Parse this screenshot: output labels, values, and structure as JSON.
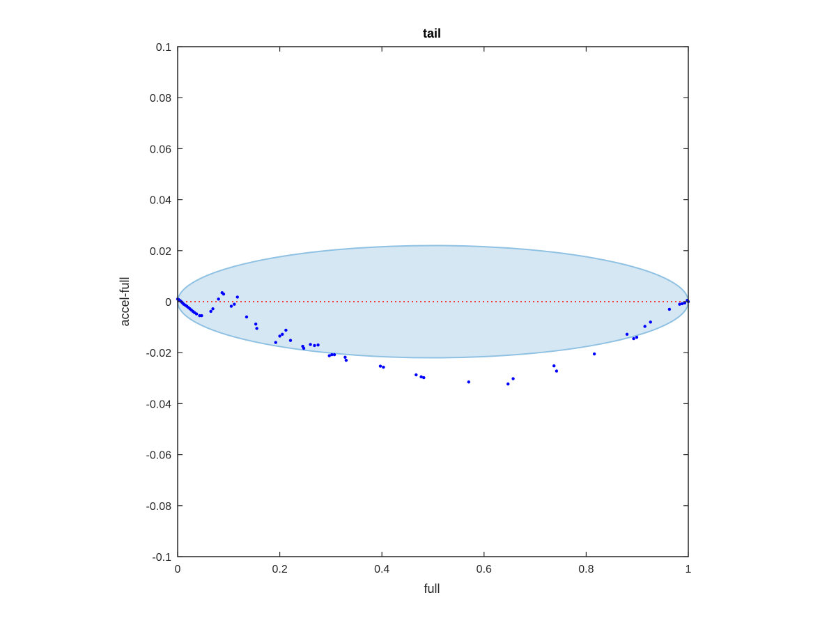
{
  "chart_data": {
    "type": "scatter",
    "title": "tail",
    "xlabel": "full",
    "ylabel": "accel-full",
    "xlim": [
      0,
      1
    ],
    "ylim": [
      -0.1,
      0.1
    ],
    "x_ticks": [
      0,
      0.2,
      0.4,
      0.6,
      0.8,
      1
    ],
    "x_tick_labels": [
      "0",
      "0.2",
      "0.4",
      "0.6",
      "0.8",
      "1"
    ],
    "y_ticks": [
      0.1,
      0.08,
      0.06,
      0.04,
      0.02,
      0,
      -0.02,
      -0.04,
      -0.06,
      -0.08,
      -0.1
    ],
    "y_tick_labels": [
      "0.1",
      "0.08",
      "0.06",
      "0.04",
      "0.02",
      "0",
      "-0.02",
      "-0.04",
      "-0.06",
      "-0.08",
      "-0.1"
    ],
    "grid": false,
    "reference_line": {
      "y": 0,
      "style": "dotted",
      "color": "#ff0000"
    },
    "ellipse": {
      "center_x": 0.5,
      "center_y": 0,
      "radius_x": 0.5,
      "radius_y": 0.022,
      "fill": "#d6e7f4",
      "stroke": "#8fc1e3"
    },
    "marker_color": "#0000ff",
    "points": [
      [
        0.0,
        0.001
      ],
      [
        0.002,
        0.0008
      ],
      [
        0.004,
        0.0005
      ],
      [
        0.006,
        0.0002
      ],
      [
        0.008,
        -0.0002
      ],
      [
        0.01,
        -0.0006
      ],
      [
        0.012,
        -0.001
      ],
      [
        0.015,
        -0.0014
      ],
      [
        0.018,
        -0.0018
      ],
      [
        0.021,
        -0.0023
      ],
      [
        0.024,
        -0.0028
      ],
      [
        0.027,
        -0.0033
      ],
      [
        0.03,
        -0.0038
      ],
      [
        0.033,
        -0.0043
      ],
      [
        0.037,
        -0.0048
      ],
      [
        0.043,
        -0.0055
      ],
      [
        0.047,
        -0.0055
      ],
      [
        0.065,
        -0.0038
      ],
      [
        0.069,
        -0.0028
      ],
      [
        0.08,
        0.001
      ],
      [
        0.087,
        0.0035
      ],
      [
        0.09,
        0.003
      ],
      [
        0.105,
        -0.0018
      ],
      [
        0.111,
        -0.001
      ],
      [
        0.117,
        0.0018
      ],
      [
        0.135,
        -0.006
      ],
      [
        0.153,
        -0.0088
      ],
      [
        0.155,
        -0.0105
      ],
      [
        0.192,
        -0.016
      ],
      [
        0.2,
        -0.0135
      ],
      [
        0.205,
        -0.0128
      ],
      [
        0.212,
        -0.0112
      ],
      [
        0.221,
        -0.0152
      ],
      [
        0.245,
        -0.0175
      ],
      [
        0.247,
        -0.0183
      ],
      [
        0.26,
        -0.0168
      ],
      [
        0.268,
        -0.0172
      ],
      [
        0.275,
        -0.017
      ],
      [
        0.297,
        -0.0212
      ],
      [
        0.302,
        -0.0208
      ],
      [
        0.307,
        -0.0208
      ],
      [
        0.328,
        -0.0218
      ],
      [
        0.33,
        -0.023
      ],
      [
        0.397,
        -0.0253
      ],
      [
        0.403,
        -0.0257
      ],
      [
        0.467,
        -0.0287
      ],
      [
        0.477,
        -0.0295
      ],
      [
        0.482,
        -0.0298
      ],
      [
        0.57,
        -0.0315
      ],
      [
        0.647,
        -0.0323
      ],
      [
        0.657,
        -0.0302
      ],
      [
        0.737,
        -0.0252
      ],
      [
        0.742,
        -0.0272
      ],
      [
        0.816,
        -0.0205
      ],
      [
        0.88,
        -0.0128
      ],
      [
        0.893,
        -0.0145
      ],
      [
        0.899,
        -0.014
      ],
      [
        0.915,
        -0.0097
      ],
      [
        0.926,
        -0.008
      ],
      [
        0.963,
        -0.003
      ],
      [
        0.983,
        -0.001
      ],
      [
        0.988,
        -0.0008
      ],
      [
        0.993,
        -0.0005
      ],
      [
        0.998,
        0.0005
      ],
      [
        1.0,
        0.0
      ]
    ]
  }
}
